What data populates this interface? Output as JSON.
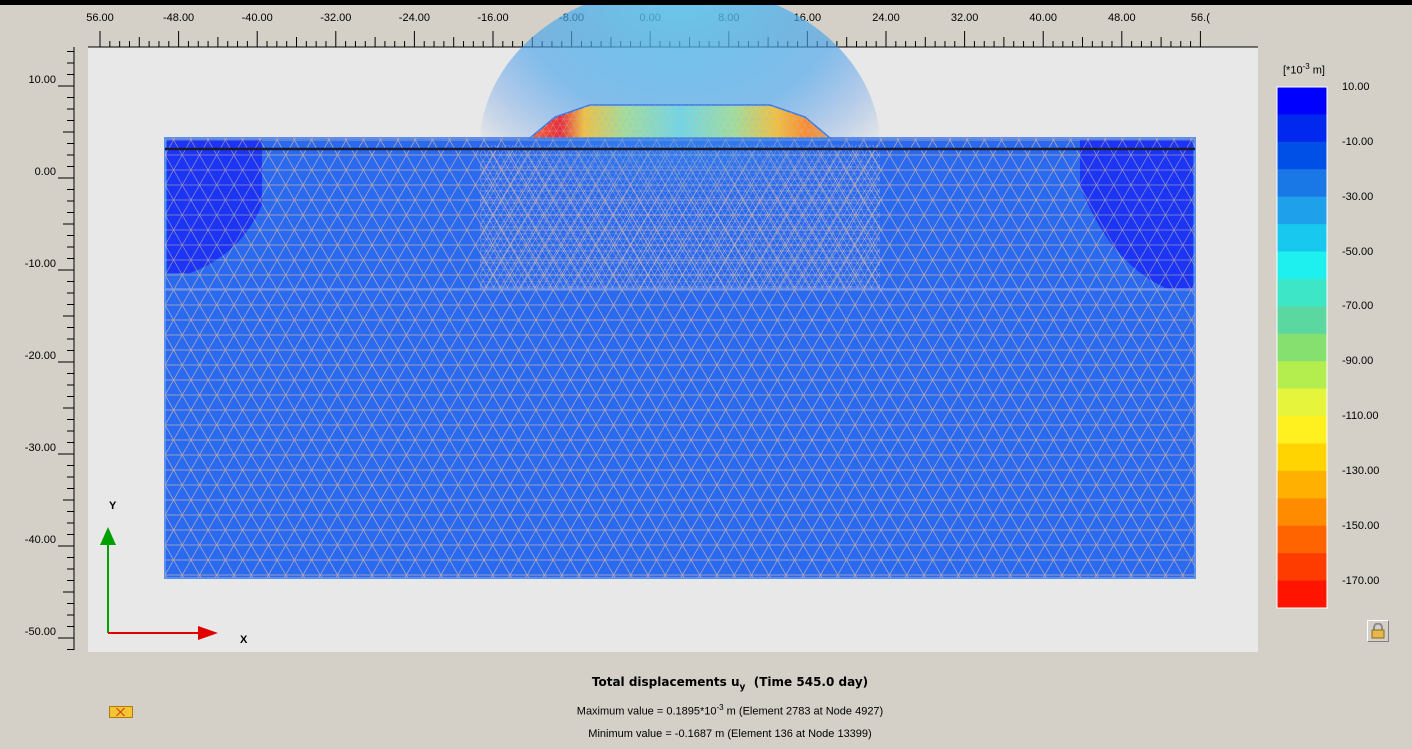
{
  "ruler_top": {
    "labels": [
      "56.00",
      "-48.00",
      "-40.00",
      "-32.00",
      "-24.00",
      "-16.00",
      "-8.00",
      "0.00",
      "8.00",
      "16.00",
      "24.00",
      "32.00",
      "40.00",
      "48.00",
      "56.("
    ]
  },
  "ruler_left": {
    "labels": [
      "10.00",
      "0.00",
      "-10.00",
      "-20.00",
      "-30.00",
      "-40.00",
      "-50.00"
    ]
  },
  "legend": {
    "unit_prefix": "[*10",
    "unit_exp": "-3",
    "unit_suffix": " m]",
    "labels": [
      "10.00",
      "-10.00",
      "-30.00",
      "-50.00",
      "-70.00",
      "-90.00",
      "-110.00",
      "-130.00",
      "-150.00",
      "-170.00"
    ],
    "colors": [
      "#0000ff",
      "#0028ee",
      "#0050e8",
      "#1a78e6",
      "#1ea0ea",
      "#18c8ee",
      "#1ef0f0",
      "#3ee6c8",
      "#5ad8a0",
      "#86e070",
      "#b4ee4e",
      "#e6f43c",
      "#fff020",
      "#ffd400",
      "#ffb000",
      "#ff8c00",
      "#ff6400",
      "#ff3c00",
      "#ff1400"
    ]
  },
  "axes": {
    "y_label": "Y",
    "x_label": "X"
  },
  "caption": {
    "title_main": "Total displacements u",
    "title_sub": "y",
    "title_time": "  (Time 545.0 day)",
    "max_prefix": "Maximum value = 0.1895*10",
    "max_exp": "-3",
    "max_suffix": " m (Element 2783 at Node 4927)",
    "min_line": "Minimum value = -0.1687 m (Element 136 at Node 13399)"
  },
  "icons": {
    "lock": "lock-icon",
    "status": "status-icon"
  }
}
